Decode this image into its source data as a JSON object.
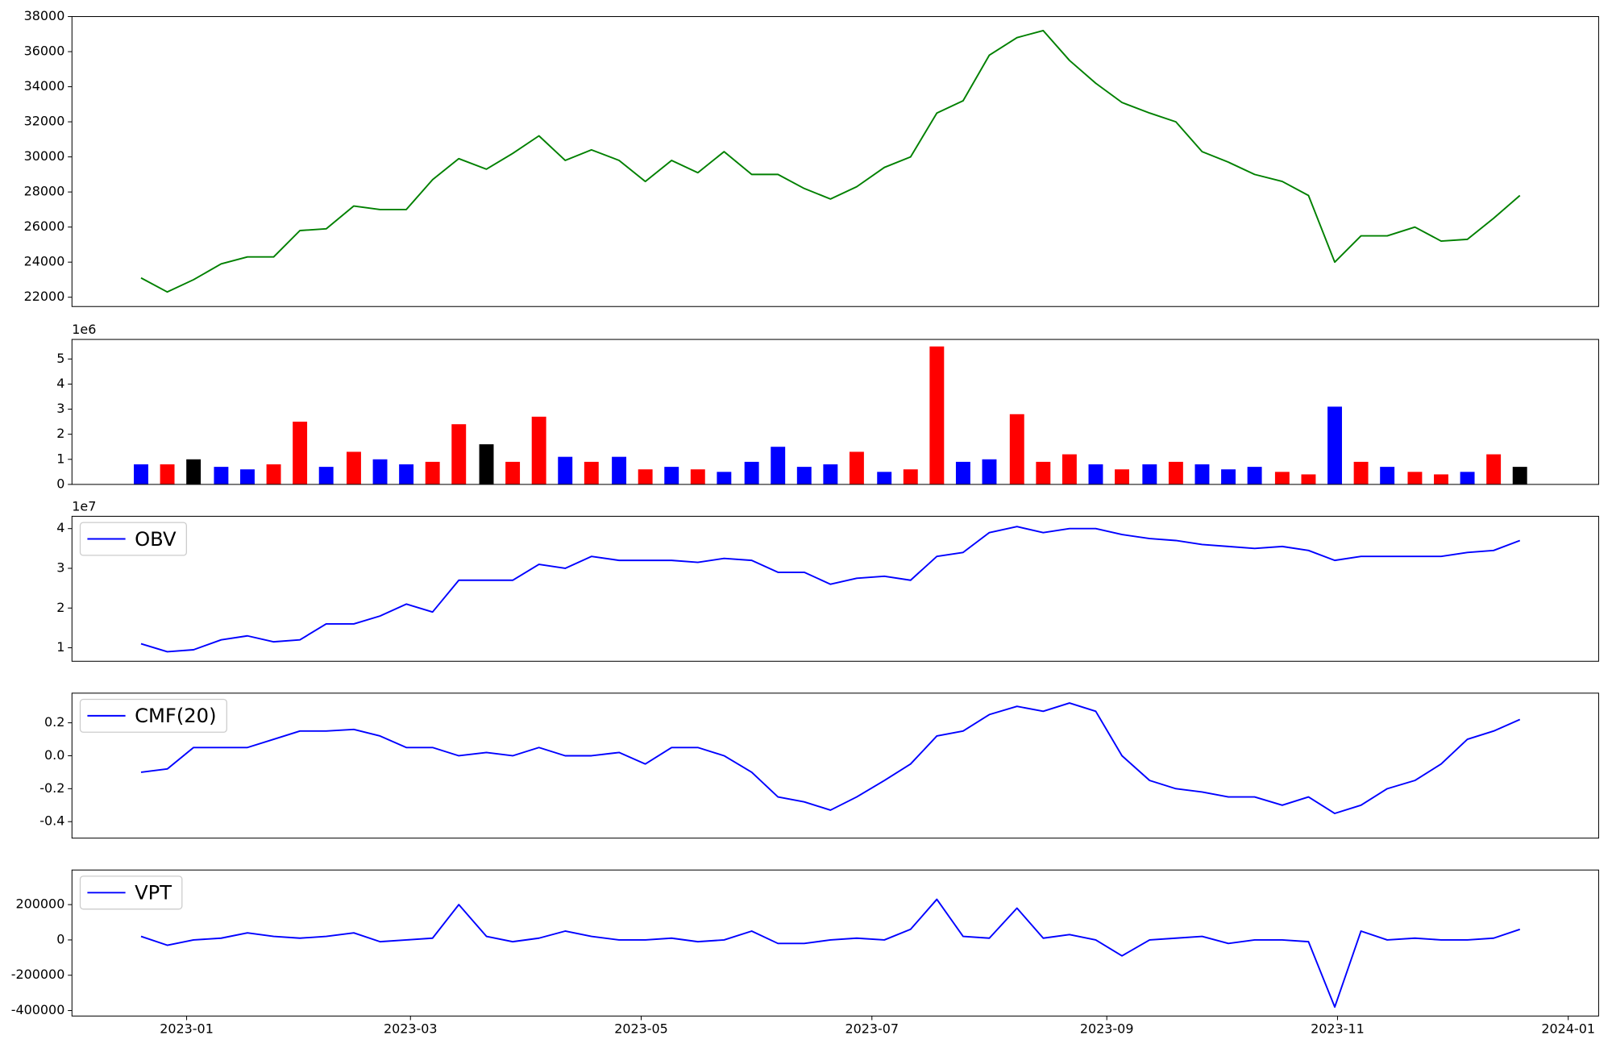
{
  "chart_data": [
    {
      "type": "line",
      "color": "green",
      "x": [
        2022.967,
        2022.986,
        2023.005,
        2023.025,
        2023.044,
        2023.063,
        2023.082,
        2023.101,
        2023.121,
        2023.14,
        2023.159,
        2023.178,
        2023.197,
        2023.217,
        2023.236,
        2023.255,
        2023.274,
        2023.293,
        2023.313,
        2023.332,
        2023.351,
        2023.37,
        2023.389,
        2023.409,
        2023.428,
        2023.447,
        2023.466,
        2023.485,
        2023.505,
        2023.524,
        2023.543,
        2023.562,
        2023.581,
        2023.601,
        2023.62,
        2023.639,
        2023.658,
        2023.677,
        2023.697,
        2023.716,
        2023.735,
        2023.754,
        2023.773,
        2023.793,
        2023.812,
        2023.831,
        2023.85,
        2023.869,
        2023.889,
        2023.908,
        2023.927,
        2023.946,
        2023.965
      ],
      "values": [
        23100,
        22300,
        23000,
        23900,
        24300,
        24300,
        25800,
        25900,
        27200,
        27000,
        27000,
        28700,
        29900,
        29300,
        30200,
        31200,
        29800,
        30400,
        29800,
        28600,
        29800,
        29100,
        30300,
        29000,
        29000,
        28200,
        27600,
        28300,
        29400,
        30000,
        32500,
        33200,
        35800,
        36800,
        37200,
        35500,
        34200,
        33100,
        32500,
        32000,
        30300,
        29700,
        29000,
        28600,
        27800,
        24000,
        25500,
        25500,
        26000,
        25200,
        25300,
        26500,
        27800
      ],
      "xlim": [
        2022.917,
        2024.022
      ],
      "ylim": [
        21470,
        38000
      ],
      "yticks": [
        22000,
        24000,
        26000,
        28000,
        30000,
        32000,
        34000,
        36000,
        38000
      ]
    },
    {
      "type": "bar",
      "scale_label": "1e6",
      "x": [
        2022.967,
        2022.986,
        2023.005,
        2023.025,
        2023.044,
        2023.063,
        2023.082,
        2023.101,
        2023.121,
        2023.14,
        2023.159,
        2023.178,
        2023.197,
        2023.217,
        2023.236,
        2023.255,
        2023.274,
        2023.293,
        2023.313,
        2023.332,
        2023.351,
        2023.37,
        2023.389,
        2023.409,
        2023.428,
        2023.447,
        2023.466,
        2023.485,
        2023.505,
        2023.524,
        2023.543,
        2023.562,
        2023.581,
        2023.601,
        2023.62,
        2023.639,
        2023.658,
        2023.677,
        2023.697,
        2023.716,
        2023.735,
        2023.754,
        2023.773,
        2023.793,
        2023.812,
        2023.831,
        2023.85,
        2023.869,
        2023.889,
        2023.908,
        2023.927,
        2023.946,
        2023.965
      ],
      "values": [
        0.8,
        0.8,
        1.0,
        0.7,
        0.6,
        0.8,
        2.5,
        0.7,
        1.3,
        1.0,
        0.8,
        0.9,
        2.4,
        1.6,
        0.9,
        2.7,
        1.1,
        0.9,
        1.1,
        0.6,
        0.7,
        0.6,
        0.5,
        0.9,
        1.5,
        0.7,
        0.8,
        1.3,
        0.5,
        0.6,
        5.5,
        0.9,
        1.0,
        2.8,
        0.9,
        1.2,
        0.8,
        0.6,
        0.8,
        0.9,
        0.8,
        0.6,
        0.7,
        0.5,
        0.4,
        3.1,
        0.9,
        0.7,
        0.5,
        0.4,
        0.5,
        1.2,
        0.7
      ],
      "colors": [
        "blue",
        "red",
        "black",
        "blue",
        "blue",
        "red",
        "red",
        "blue",
        "red",
        "blue",
        "blue",
        "red",
        "red",
        "black",
        "red",
        "red",
        "blue",
        "red",
        "blue",
        "red",
        "blue",
        "red",
        "blue",
        "blue",
        "blue",
        "blue",
        "blue",
        "red",
        "blue",
        "red",
        "red",
        "blue",
        "blue",
        "red",
        "red",
        "red",
        "blue",
        "red",
        "blue",
        "red",
        "blue",
        "blue",
        "blue",
        "red",
        "red",
        "blue",
        "red",
        "blue",
        "red",
        "red",
        "blue",
        "red",
        "black"
      ],
      "xlim": [
        2022.917,
        2024.022
      ],
      "ylim": [
        0,
        5.78
      ],
      "yticks": [
        0,
        1,
        2,
        3,
        4,
        5
      ]
    },
    {
      "type": "line",
      "scale_label": "1e7",
      "legend": "upper left",
      "x": [
        2022.967,
        2022.986,
        2023.005,
        2023.025,
        2023.044,
        2023.063,
        2023.082,
        2023.101,
        2023.121,
        2023.14,
        2023.159,
        2023.178,
        2023.197,
        2023.217,
        2023.236,
        2023.255,
        2023.274,
        2023.293,
        2023.313,
        2023.332,
        2023.351,
        2023.37,
        2023.389,
        2023.409,
        2023.428,
        2023.447,
        2023.466,
        2023.485,
        2023.505,
        2023.524,
        2023.543,
        2023.562,
        2023.581,
        2023.601,
        2023.62,
        2023.639,
        2023.658,
        2023.677,
        2023.697,
        2023.716,
        2023.735,
        2023.754,
        2023.773,
        2023.793,
        2023.812,
        2023.831,
        2023.85,
        2023.869,
        2023.889,
        2023.908,
        2023.927,
        2023.946,
        2023.965
      ],
      "series": [
        {
          "name": "OBV",
          "color": "blue",
          "values": [
            1.1,
            0.9,
            0.95,
            1.2,
            1.3,
            1.15,
            1.2,
            1.6,
            1.6,
            1.8,
            2.1,
            1.9,
            2.7,
            2.7,
            2.7,
            3.1,
            3.0,
            3.3,
            3.2,
            3.2,
            3.2,
            3.15,
            3.25,
            3.2,
            2.9,
            2.9,
            2.6,
            2.75,
            2.8,
            2.7,
            3.3,
            3.4,
            3.9,
            4.05,
            3.9,
            4.0,
            4.0,
            3.85,
            3.75,
            3.7,
            3.6,
            3.55,
            3.5,
            3.55,
            3.45,
            3.2,
            3.3,
            3.3,
            3.3,
            3.3,
            3.4,
            3.45,
            3.7
          ]
        }
      ],
      "xlim": [
        2022.917,
        2024.022
      ],
      "ylim": [
        0.66,
        4.31
      ],
      "yticks": [
        1,
        2,
        3,
        4
      ]
    },
    {
      "type": "line",
      "legend": "upper left",
      "x": [
        2022.967,
        2022.986,
        2023.005,
        2023.025,
        2023.044,
        2023.063,
        2023.082,
        2023.101,
        2023.121,
        2023.14,
        2023.159,
        2023.178,
        2023.197,
        2023.217,
        2023.236,
        2023.255,
        2023.274,
        2023.293,
        2023.313,
        2023.332,
        2023.351,
        2023.37,
        2023.389,
        2023.409,
        2023.428,
        2023.447,
        2023.466,
        2023.485,
        2023.505,
        2023.524,
        2023.543,
        2023.562,
        2023.581,
        2023.601,
        2023.62,
        2023.639,
        2023.658,
        2023.677,
        2023.697,
        2023.716,
        2023.735,
        2023.754,
        2023.773,
        2023.793,
        2023.812,
        2023.831,
        2023.85,
        2023.869,
        2023.889,
        2023.908,
        2023.927,
        2023.946,
        2023.965
      ],
      "series": [
        {
          "name": "CMF(20)",
          "color": "blue",
          "values": [
            -0.1,
            -0.08,
            0.05,
            0.05,
            0.05,
            0.1,
            0.15,
            0.15,
            0.16,
            0.12,
            0.05,
            0.05,
            0.0,
            0.02,
            0.0,
            0.05,
            0.0,
            0.0,
            0.02,
            -0.05,
            0.05,
            0.05,
            0.0,
            -0.1,
            -0.25,
            -0.28,
            -0.33,
            -0.25,
            -0.15,
            -0.05,
            0.12,
            0.15,
            0.25,
            0.3,
            0.27,
            0.32,
            0.27,
            0.0,
            -0.15,
            -0.2,
            -0.22,
            -0.25,
            -0.25,
            -0.3,
            -0.25,
            -0.35,
            -0.3,
            -0.2,
            -0.15,
            -0.05,
            0.1,
            0.15,
            0.22
          ]
        }
      ],
      "xlim": [
        2022.917,
        2024.022
      ],
      "ylim": [
        -0.5,
        0.38
      ],
      "yticks": [
        -0.4,
        -0.2,
        {
          "value": 0,
          "label": "0.0"
        },
        0.2
      ]
    },
    {
      "type": "line",
      "legend": "upper left",
      "x": [
        2022.967,
        2022.986,
        2023.005,
        2023.025,
        2023.044,
        2023.063,
        2023.082,
        2023.101,
        2023.121,
        2023.14,
        2023.159,
        2023.178,
        2023.197,
        2023.217,
        2023.236,
        2023.255,
        2023.274,
        2023.293,
        2023.313,
        2023.332,
        2023.351,
        2023.37,
        2023.389,
        2023.409,
        2023.428,
        2023.447,
        2023.466,
        2023.485,
        2023.505,
        2023.524,
        2023.543,
        2023.562,
        2023.581,
        2023.601,
        2023.62,
        2023.639,
        2023.658,
        2023.677,
        2023.697,
        2023.716,
        2023.735,
        2023.754,
        2023.773,
        2023.793,
        2023.812,
        2023.831,
        2023.85,
        2023.869,
        2023.889,
        2023.908,
        2023.927,
        2023.946,
        2023.965
      ],
      "series": [
        {
          "name": "VPT",
          "color": "blue",
          "values": [
            20000,
            -30000,
            0,
            10000,
            40000,
            20000,
            10000,
            20000,
            40000,
            -10000,
            0,
            10000,
            200000,
            20000,
            -10000,
            10000,
            50000,
            20000,
            0,
            0,
            10000,
            -10000,
            0,
            50000,
            -20000,
            -20000,
            0,
            10000,
            0,
            60000,
            230000,
            20000,
            10000,
            180000,
            10000,
            30000,
            0,
            -90000,
            0,
            10000,
            20000,
            -20000,
            0,
            0,
            -10000,
            -380000,
            50000,
            0,
            10000,
            0,
            0,
            10000,
            60000
          ]
        }
      ],
      "xlim": [
        2022.917,
        2024.022
      ],
      "ylim": [
        -431000,
        396000
      ],
      "yticks": [
        -400000,
        -200000,
        0,
        200000
      ],
      "xticks": [
        {
          "value": 2023.0,
          "label": "2023-01"
        },
        {
          "value": 2023.162,
          "label": "2023-03"
        },
        {
          "value": 2023.329,
          "label": "2023-05"
        },
        {
          "value": 2023.496,
          "label": "2023-07"
        },
        {
          "value": 2023.666,
          "label": "2023-09"
        },
        {
          "value": 2023.833,
          "label": "2023-11"
        },
        {
          "value": 2024.0,
          "label": "2024-01"
        }
      ]
    }
  ]
}
